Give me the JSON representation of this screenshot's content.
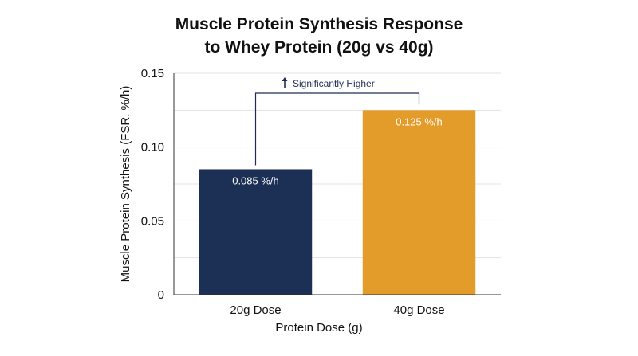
{
  "chart_data": {
    "type": "bar",
    "title_lines": [
      "Muscle Protein Synthesis Response",
      "to Whey Protein (20g vs 40g)"
    ],
    "xlabel": "Protein Dose (g)",
    "ylabel": "Muscle Protein Synthesis (FSR, %/h)",
    "categories": [
      "20g Dose",
      "40g Dose"
    ],
    "values": [
      0.085,
      0.125
    ],
    "data_labels": [
      "0.085 %/h",
      "0.125 %/h"
    ],
    "bar_colors": [
      "#1c2f55",
      "#e39b2a"
    ],
    "ylim": [
      0,
      0.15
    ],
    "yticks": [
      0,
      0.05,
      0.1,
      0.15
    ],
    "ytick_labels": [
      "0",
      "0.05",
      "0.10",
      "0.15"
    ],
    "grid": true,
    "annotation": {
      "text": "Significantly Higher",
      "icon": "arrow-up-icon",
      "color": "#1f2d52"
    }
  }
}
